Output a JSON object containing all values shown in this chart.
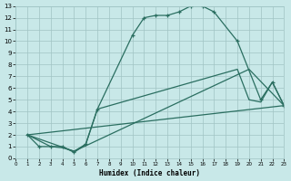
{
  "xlabel": "Humidex (Indice chaleur)",
  "bg_color": "#c8e8e8",
  "grid_color": "#a0c4c4",
  "line_color": "#2a6e60",
  "xlim": [
    0,
    23
  ],
  "ylim": [
    0,
    13
  ],
  "curve1_x": [
    1,
    2,
    3,
    4,
    5,
    6,
    7,
    10,
    11,
    12,
    13,
    14,
    15,
    16,
    17,
    19,
    21,
    22,
    23
  ],
  "curve1_y": [
    2,
    1,
    1,
    1,
    0.5,
    1.2,
    4.2,
    10.5,
    12.0,
    12.2,
    12.2,
    12.5,
    13.0,
    13.0,
    12.5,
    10.0,
    5.0,
    6.5,
    4.5
  ],
  "curve2_x": [
    1,
    3,
    4,
    5,
    6,
    7,
    19,
    20,
    21,
    22,
    23
  ],
  "curve2_y": [
    2,
    1,
    0.9,
    0.6,
    1.2,
    4.2,
    7.6,
    5.0,
    4.8,
    6.5,
    4.5
  ],
  "curve3_x": [
    1,
    23
  ],
  "curve3_y": [
    2,
    4.5
  ],
  "curve4_x": [
    1,
    5,
    20,
    23
  ],
  "curve4_y": [
    2,
    0.6,
    7.6,
    4.5
  ]
}
